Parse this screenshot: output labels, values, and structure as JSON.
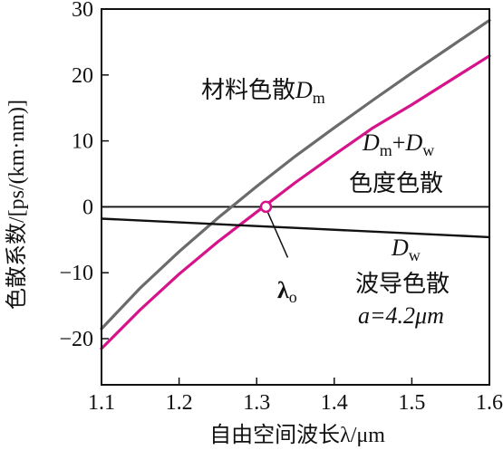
{
  "chart_data": {
    "type": "line",
    "xlabel": "自由空间波长λ/μm",
    "ylabel": "色散系数/[ps/(km·nm)]",
    "xlim": [
      1.1,
      1.6
    ],
    "ylim": [
      -27,
      30
    ],
    "xticks": [
      "1.1",
      "1.2",
      "1.3",
      "1.4",
      "1.5",
      "1.6"
    ],
    "yticks": [
      "30",
      "20",
      "10",
      "0",
      "−10",
      "−20"
    ],
    "grid": false,
    "colors": {
      "material": "#6b6b6b",
      "total": "#d6138a",
      "waveguide": "#111111",
      "zero": "#111111"
    },
    "series": [
      {
        "id": "material",
        "label_main": "材料色散",
        "label_D": "D",
        "label_sub": "m",
        "x": [
          1.1,
          1.15,
          1.2,
          1.25,
          1.3,
          1.35,
          1.4,
          1.45,
          1.5,
          1.55,
          1.6
        ],
        "y": [
          -18.5,
          -12.3,
          -6.8,
          -1.7,
          3.1,
          7.7,
          12.0,
          16.2,
          20.3,
          24.3,
          28.3
        ]
      },
      {
        "id": "total",
        "label_D1": "D",
        "label_sub1": "m",
        "label_plus": "+",
        "label_D2": "D",
        "label_sub2": "w",
        "label_main": "色度色散",
        "x": [
          1.1,
          1.15,
          1.2,
          1.25,
          1.3,
          1.35,
          1.4,
          1.45,
          1.5,
          1.55,
          1.6
        ],
        "y": [
          -21.5,
          -15.6,
          -10.2,
          -5.3,
          -0.8,
          3.7,
          7.9,
          12.0,
          15.5,
          19.2,
          22.9
        ]
      },
      {
        "id": "waveguide",
        "label_D": "D",
        "label_sub": "w",
        "label_main": "波导色散",
        "label_param": "a=4.2μm",
        "x": [
          1.1,
          1.6
        ],
        "y": [
          -1.8,
          -4.6
        ]
      }
    ],
    "zero_dispersion": {
      "x": 1.312,
      "label": "λ",
      "label_sub": "o"
    }
  }
}
